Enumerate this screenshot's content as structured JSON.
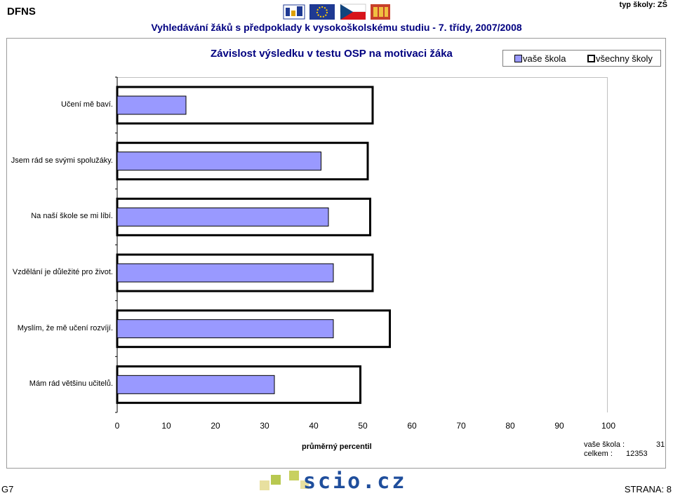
{
  "header": {
    "brand": "DFNS",
    "school_type": "typ školy: ZŠ",
    "report_title": "Vyhledávání žáků s předpoklady k vysokoškolskému studiu - 7. třídy, 2007/2008"
  },
  "chart": {
    "title": "Závislost výsledku v testu OSP na motivaci žáka",
    "legend": {
      "school_label": "vaše škola",
      "all_label": "všechny školy",
      "placement": "top-right"
    },
    "x_axis_label": "průměrný percentil"
  },
  "stats": {
    "school_label": "vaše škola :",
    "school_value": "31",
    "total_label": "celkem :",
    "total_value": "12353"
  },
  "footer": {
    "page_code": "G7",
    "page_number": "STRANA: 8",
    "logo_text": "scio.cz"
  },
  "colors": {
    "school_bar": "#9999ff",
    "all_bar_fill": "#ffffff",
    "title": "#000080"
  },
  "chart_data": {
    "type": "bar",
    "orientation": "horizontal",
    "categories": [
      "Učení mě baví.",
      "Jsem rád se svými spolužáky.",
      "Na naší škole se mi líbí.",
      "Vzdělání je důležité pro život.",
      "Myslím, že mě učení rozvíjí.",
      "Mám rád většinu učitelů."
    ],
    "series": [
      {
        "name": "vaše škola",
        "values": [
          14,
          41.5,
          43,
          44,
          44,
          32
        ]
      },
      {
        "name": "všechny školy",
        "values": [
          52,
          51,
          51.5,
          52,
          55.5,
          49.5
        ]
      }
    ],
    "xlim": [
      0,
      100
    ],
    "xticks": [
      0,
      10,
      20,
      30,
      40,
      50,
      60,
      70,
      80,
      90,
      100
    ],
    "xlabel": "průměrný percentil",
    "title": "Závislost výsledku v testu OSP na motivaci žáka",
    "legend": "top-right",
    "grid": false
  }
}
